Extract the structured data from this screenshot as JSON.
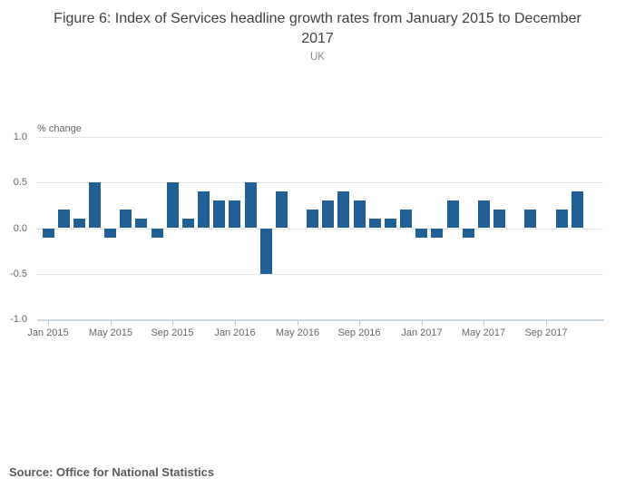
{
  "chart_data": {
    "type": "bar",
    "title": "Figure 6: Index of Services headline growth rates from January 2015 to December 2017",
    "subtitle": "UK",
    "ylabel": "% change",
    "xlabel": "",
    "source": "Source: Office for National Statistics",
    "categories": [
      "Jan 2015",
      "Feb 2015",
      "Mar 2015",
      "Apr 2015",
      "May 2015",
      "Jun 2015",
      "Jul 2015",
      "Aug 2015",
      "Sep 2015",
      "Oct 2015",
      "Nov 2015",
      "Dec 2015",
      "Jan 2016",
      "Feb 2016",
      "Mar 2016",
      "Apr 2016",
      "May 2016",
      "Jun 2016",
      "Jul 2016",
      "Aug 2016",
      "Sep 2016",
      "Oct 2016",
      "Nov 2016",
      "Dec 2016",
      "Jan 2017",
      "Feb 2017",
      "Mar 2017",
      "Apr 2017",
      "May 2017",
      "Jun 2017",
      "Jul 2017",
      "Aug 2017",
      "Sep 2017",
      "Oct 2017",
      "Nov 2017",
      "Dec 2017"
    ],
    "values": [
      -0.1,
      0.2,
      0.1,
      0.5,
      -0.1,
      0.2,
      0.1,
      -0.1,
      0.5,
      0.1,
      0.4,
      0.3,
      0.3,
      0.5,
      -0.5,
      0.4,
      0.0,
      0.2,
      0.3,
      0.4,
      0.3,
      0.1,
      0.1,
      0.2,
      -0.1,
      -0.1,
      0.3,
      -0.1,
      0.3,
      0.2,
      0.0,
      0.2,
      0.0,
      0.2,
      0.4,
      0.0
    ],
    "x_tick_labels": [
      "Jan 2015",
      "May 2015",
      "Sep 2015",
      "Jan 2016",
      "May 2016",
      "Sep 2016",
      "Jan 2017",
      "May 2017",
      "Sep 2017"
    ],
    "x_tick_every": 4,
    "y_ticks": [
      1.0,
      0.5,
      0.0,
      -0.5,
      -1.0
    ],
    "ylim": [
      -1.0,
      1.0
    ],
    "grid": "horizontal",
    "legend": "none",
    "colors": {
      "bar": "#206095",
      "grid": "#e4e4e4",
      "axis": "#c9d6df",
      "tick": "#b8c8d3",
      "axis_text": "#666666",
      "title_text": "#3f3f3f",
      "subtitle_text": "#8a8a8a",
      "source_text": "#595959"
    }
  }
}
